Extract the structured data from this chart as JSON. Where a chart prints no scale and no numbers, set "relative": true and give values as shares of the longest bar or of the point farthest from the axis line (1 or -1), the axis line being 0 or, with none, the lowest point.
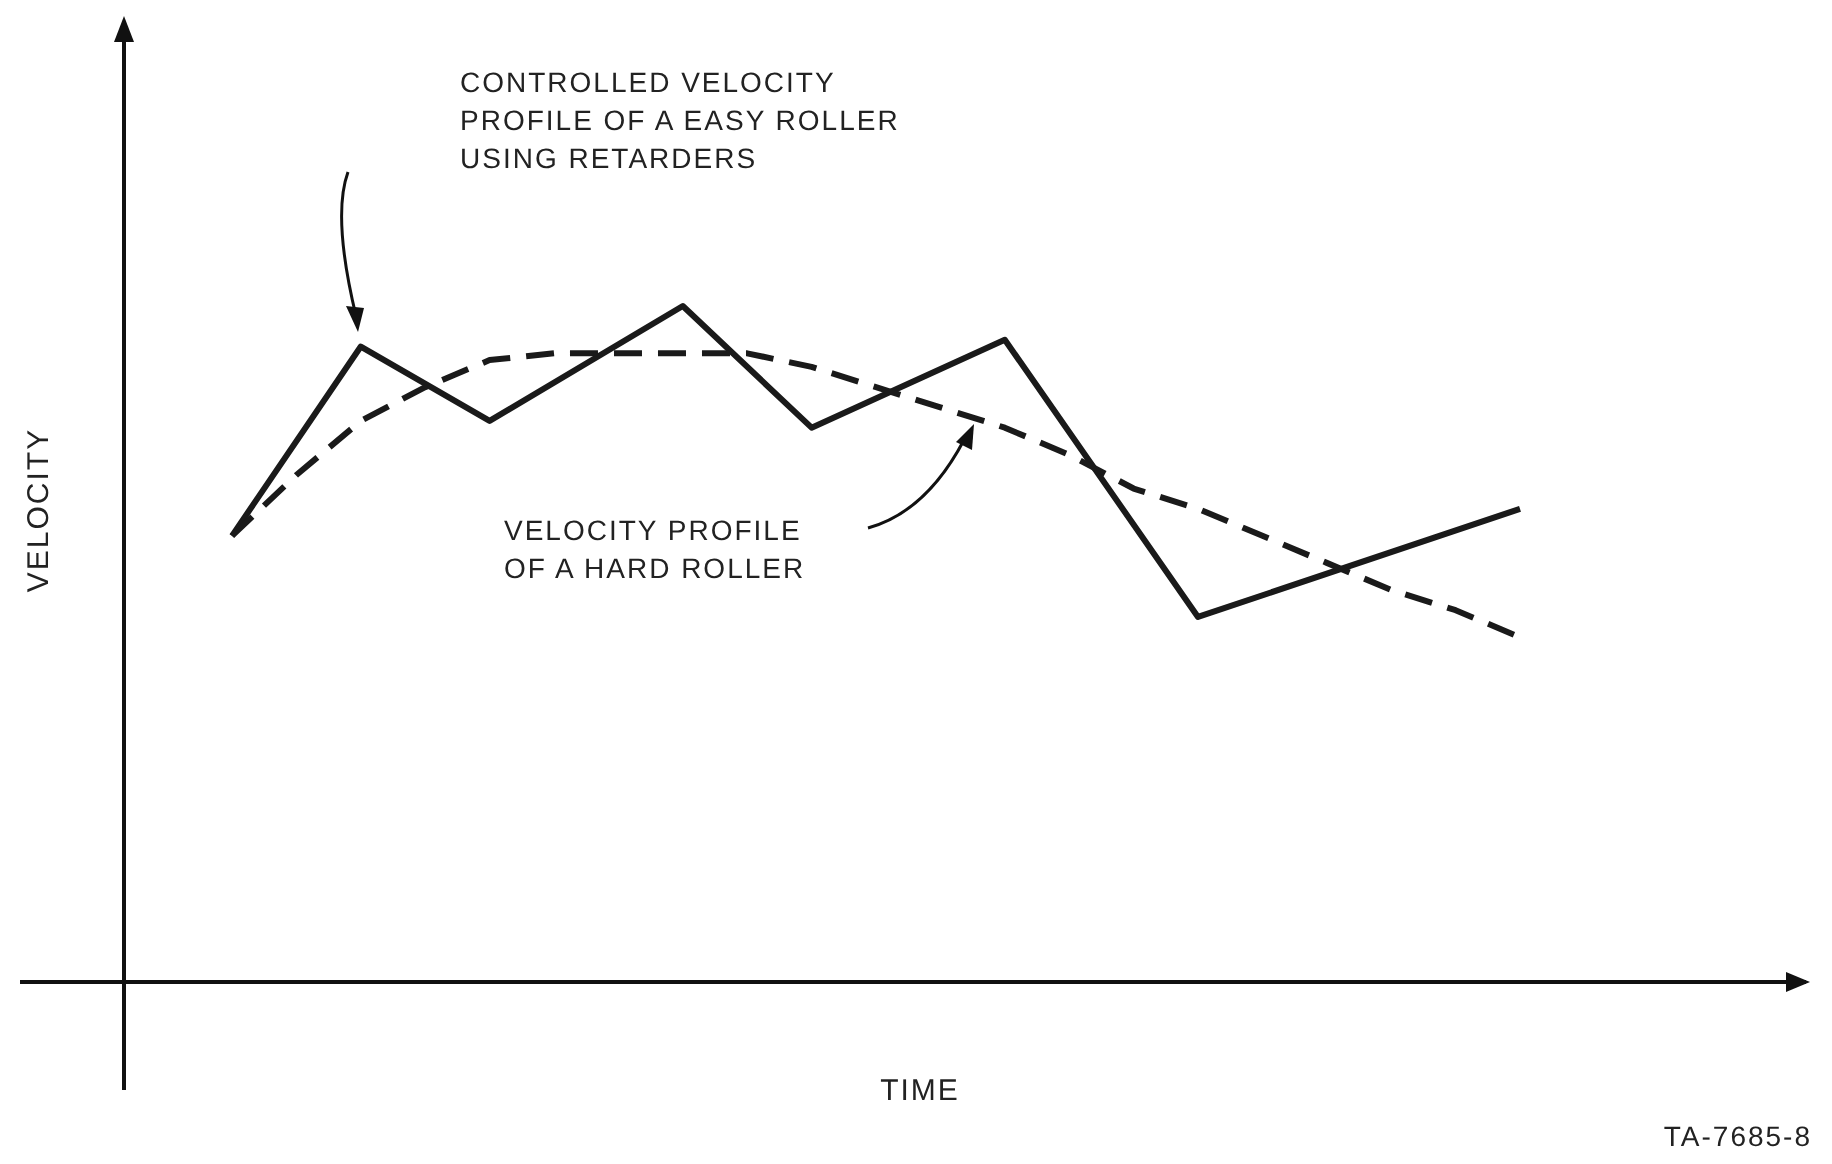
{
  "chart_data": {
    "type": "line",
    "relative": true,
    "xlabel": "TIME",
    "ylabel": "VELOCITY",
    "marker": "none",
    "categories": [
      null,
      null,
      null,
      null,
      null,
      null,
      null,
      null,
      null,
      null,
      null,
      null,
      null,
      null,
      null,
      null,
      null,
      null,
      null,
      null,
      null
    ],
    "series": [
      {
        "color": "#1a1a1a",
        "line_style": "solid",
        "values": [
          0.66,
          null,
          0.94,
          null,
          0.83,
          null,
          null,
          1,
          null,
          0.82,
          null,
          null,
          0.95,
          null,
          null,
          0.54,
          null,
          null,
          null,
          null,
          0.7
        ]
      },
      {
        "color": "#1a1a1a",
        "line_style": "dashed",
        "values": [
          0.66,
          0.75,
          0.83,
          0.88,
          0.92,
          0.93,
          0.93,
          0.93,
          0.93,
          0.91,
          0.88,
          0.85,
          0.82,
          0.78,
          0.73,
          0.7,
          0.66,
          0.62,
          0.58,
          0.55,
          0.51
        ]
      }
    ],
    "annotations": [
      "CONTROLLED VELOCITY\nPROFILE OF A EASY ROLLER\nUSING RETARDERS",
      "VELOCITY PROFILE\nOF A HARD ROLLER",
      "TA-7685-8"
    ]
  }
}
